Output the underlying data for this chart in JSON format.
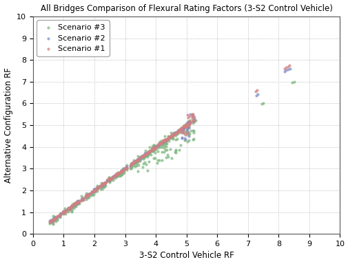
{
  "title": "All Bridges Comparison of Flexural Rating Factors (3-S2 Control Vehicle)",
  "xlabel": "3-S2 Control Vehicle RF",
  "ylabel": "Alternative Configuration RF",
  "xlim": [
    0,
    10
  ],
  "ylim": [
    0,
    10
  ],
  "xticks": [
    0,
    1,
    2,
    3,
    4,
    5,
    6,
    7,
    8,
    9,
    10
  ],
  "yticks": [
    0,
    1,
    2,
    3,
    4,
    5,
    6,
    7,
    8,
    9,
    10
  ],
  "legend_labels": [
    "Scenario #1",
    "Scenario #2",
    "Scenario #3"
  ],
  "colors": {
    "scenario1": "#d08080",
    "scenario2": "#8090c8",
    "scenario3": "#80b880"
  },
  "background_color": "#ffffff",
  "title_fontsize": 8.5,
  "axis_fontsize": 8.5,
  "tick_fontsize": 8,
  "legend_fontsize": 8,
  "marker_size": 3,
  "figsize": [
    5.06,
    3.84
  ],
  "dpi": 100,
  "n_main": 300,
  "seed": 12345
}
